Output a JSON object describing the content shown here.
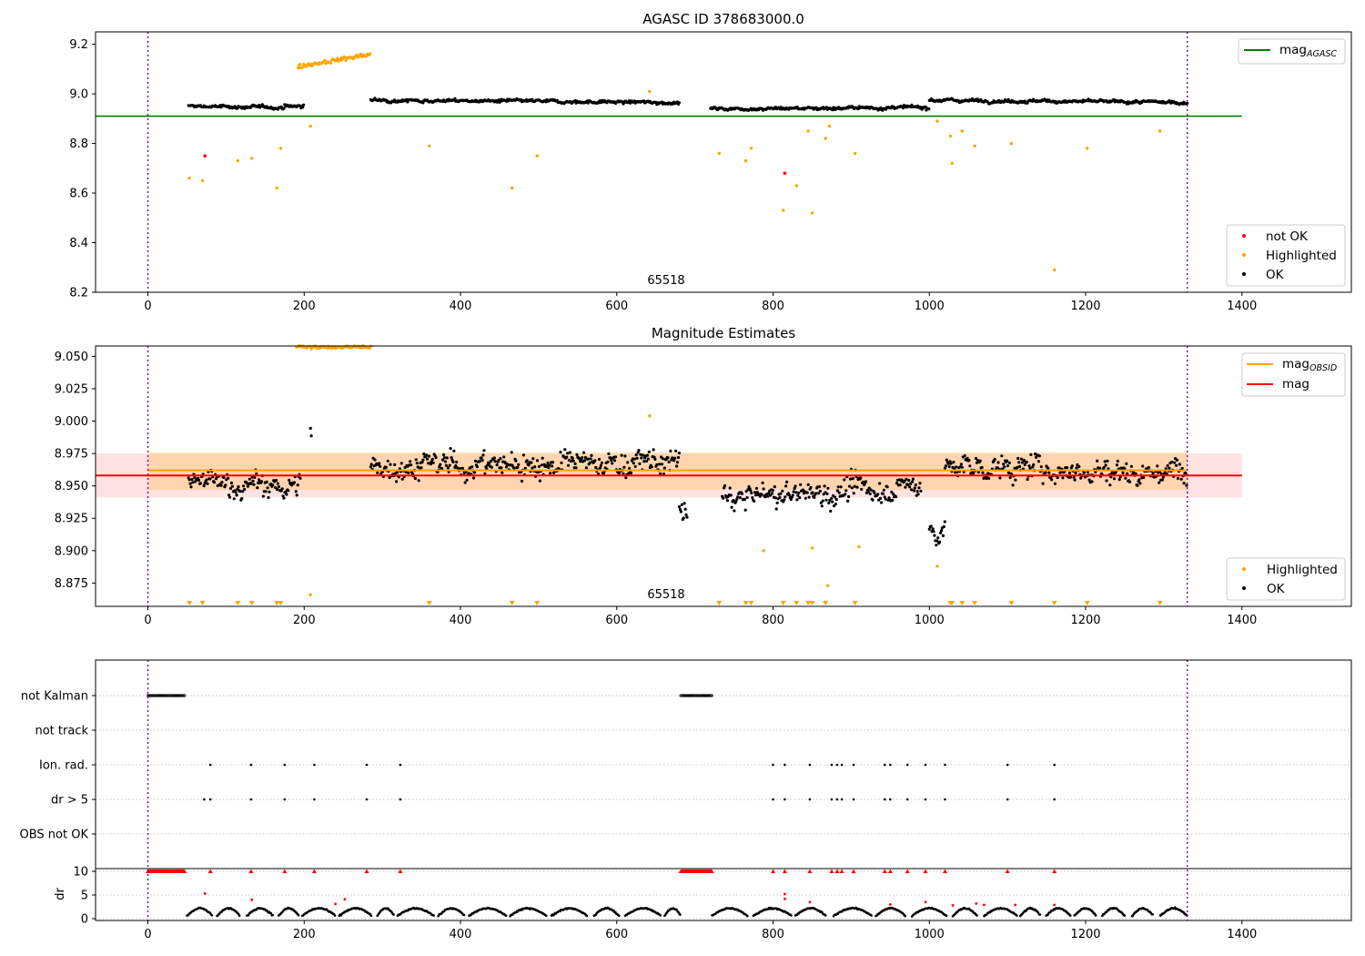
{
  "chart_data": [
    {
      "type": "scatter",
      "title": "AGASC ID 378683000.0",
      "annotation": "65518",
      "xlim": [
        -67,
        1540
      ],
      "ylim": [
        8.2,
        9.25
      ],
      "x_ticks": [
        0,
        200,
        400,
        600,
        800,
        1000,
        1200,
        1400
      ],
      "y_ticks": [
        "8.2",
        "8.4",
        "8.6",
        "8.8",
        "9.0",
        "9.2"
      ],
      "vlines_x": [
        0,
        1330
      ],
      "hline": {
        "name": "mag",
        "name_sub": "AGASC",
        "y": 8.91,
        "x_range": [
          -67,
          1400
        ],
        "color": "#008000"
      },
      "legend_lines": [
        {
          "name": "mag",
          "sub": "AGASC",
          "color": "#008000"
        }
      ],
      "legend_points": [
        {
          "name": "not OK",
          "color": "#ff0000"
        },
        {
          "name": "Highlighted",
          "color": "#ffa500"
        },
        {
          "name": "OK",
          "color": "#000000"
        }
      ],
      "ok_segments": [
        {
          "x": [
            52,
            175
          ],
          "y": [
            8.95,
            8.945
          ]
        },
        {
          "x": [
            175,
            200
          ],
          "y": [
            8.95,
            8.95
          ]
        },
        {
          "x": [
            285,
            680
          ],
          "y": [
            8.975,
            8.965
          ]
        },
        {
          "x": [
            720,
            1000
          ],
          "y": [
            8.94,
            8.945
          ]
        },
        {
          "x": [
            1000,
            1330
          ],
          "y": [
            8.975,
            8.965
          ]
        }
      ],
      "highlighted_cluster": {
        "x": [
          192,
          285
        ],
        "y": [
          9.11,
          9.16
        ]
      },
      "highlighted_points": [
        [
          53,
          8.66
        ],
        [
          70,
          8.65
        ],
        [
          115,
          8.73
        ],
        [
          133,
          8.74
        ],
        [
          165,
          8.62
        ],
        [
          170,
          8.78
        ],
        [
          208,
          8.87
        ],
        [
          360,
          8.79
        ],
        [
          466,
          8.62
        ],
        [
          498,
          8.75
        ],
        [
          642,
          9.01
        ],
        [
          731,
          8.76
        ],
        [
          765,
          8.73
        ],
        [
          772,
          8.78
        ],
        [
          813,
          8.53
        ],
        [
          830,
          8.63
        ],
        [
          845,
          8.85
        ],
        [
          850,
          8.52
        ],
        [
          867,
          8.82
        ],
        [
          872,
          8.87
        ],
        [
          905,
          8.76
        ],
        [
          1010,
          8.89
        ],
        [
          1027,
          8.83
        ],
        [
          1029,
          8.72
        ],
        [
          1042,
          8.85
        ],
        [
          1058,
          8.79
        ],
        [
          1105,
          8.8
        ],
        [
          1160,
          8.29
        ],
        [
          1202,
          8.78
        ],
        [
          1295,
          8.85
        ]
      ],
      "not_ok_points": [
        [
          73,
          8.75
        ],
        [
          815,
          8.68
        ]
      ]
    },
    {
      "type": "scatter",
      "title": "Magnitude Estimates",
      "annotation": "65518",
      "xlim": [
        -67,
        1540
      ],
      "ylim": [
        8.857,
        9.058
      ],
      "x_ticks": [
        0,
        200,
        400,
        600,
        800,
        1000,
        1200,
        1400
      ],
      "y_ticks": [
        "8.875",
        "8.900",
        "8.925",
        "8.950",
        "8.975",
        "9.000",
        "9.025",
        "9.050"
      ],
      "vlines_x": [
        0,
        1330
      ],
      "mag_obsid": {
        "name": "mag",
        "sub": "OBSID",
        "y": 8.962,
        "band": [
          8.947,
          8.976
        ],
        "x_range": [
          0,
          1330
        ],
        "color": "#ffa500"
      },
      "mag": {
        "name": "mag",
        "y": 8.958,
        "band": [
          8.941,
          8.975
        ],
        "x_range": [
          -67,
          1400
        ],
        "color": "#ff0000"
      },
      "legend_lines": [
        {
          "name": "mag",
          "sub": "OBSID",
          "color": "#ffa500"
        },
        {
          "name": "mag",
          "sub": "",
          "color": "#ff0000"
        }
      ],
      "legend_points": [
        {
          "name": "Highlighted",
          "color": "#ffa500"
        },
        {
          "name": "OK",
          "color": "#000000"
        }
      ],
      "ok_segments": [
        {
          "x": [
            52,
            195
          ],
          "y": [
            8.953,
            8.948
          ]
        },
        {
          "x": [
            208,
            210
          ],
          "y": [
            8.993,
            8.993
          ]
        },
        {
          "x": [
            285,
            680
          ],
          "y": [
            8.965,
            8.968
          ]
        },
        {
          "x": [
            680,
            690
          ],
          "y": [
            8.93,
            8.93
          ]
        },
        {
          "x": [
            735,
            990
          ],
          "y": [
            8.94,
            8.95
          ]
        },
        {
          "x": [
            1000,
            1020
          ],
          "y": [
            8.915,
            8.915
          ]
        },
        {
          "x": [
            1020,
            1330
          ],
          "y": [
            8.965,
            8.96
          ]
        }
      ],
      "top_cluster": {
        "x": [
          190,
          287
        ],
        "y": 9.057
      },
      "highlighted_points": [
        [
          208,
          8.866
        ],
        [
          642,
          9.004
        ],
        [
          788,
          8.9
        ],
        [
          850,
          8.902
        ],
        [
          870,
          8.873
        ],
        [
          910,
          8.903
        ],
        [
          1010,
          8.888
        ]
      ],
      "clipped_below_x": [
        53,
        70,
        115,
        133,
        165,
        170,
        360,
        466,
        498,
        731,
        765,
        772,
        813,
        830,
        845,
        850,
        867,
        905,
        1027,
        1029,
        1042,
        1058,
        1105,
        1160,
        1202,
        1295
      ]
    },
    {
      "type": "scatter",
      "title": "",
      "xlim": [
        -67,
        1540
      ],
      "x_ticks": [
        0,
        200,
        400,
        600,
        800,
        1000,
        1200,
        1400
      ],
      "vlines_x": [
        0,
        1330
      ],
      "flag_rows": [
        "not Kalman",
        "not track",
        "Ion. rad.",
        "dr > 5",
        "OBS not OK"
      ],
      "flags": {
        "not Kalman": [
          [
            0,
            48
          ],
          [
            682,
            722
          ]
        ],
        "not track": [],
        "Ion. rad.": [
          80,
          132,
          175,
          213,
          280,
          323,
          800,
          815,
          847,
          875,
          882,
          888,
          903,
          943,
          950,
          972,
          995,
          1020,
          1100,
          1160
        ],
        "dr > 5": [
          72,
          80,
          132,
          175,
          213,
          280,
          323,
          800,
          815,
          847,
          875,
          882,
          888,
          903,
          943,
          950,
          972,
          995,
          1020,
          1100,
          1160
        ],
        "OBS not OK": []
      },
      "dr_axis": {
        "ylabel": "dr",
        "y_ticks": [
          "0",
          "5",
          "10"
        ],
        "ylim": [
          -1,
          11
        ]
      },
      "dr_clipped_x": [
        [
          0,
          48
        ],
        [
          682,
          722
        ],
        80,
        132,
        175,
        213,
        280,
        323,
        800,
        815,
        847,
        875,
        882,
        888,
        903,
        943,
        950,
        972,
        995,
        1020,
        1100,
        1160
      ],
      "dr_red_points": [
        [
          73,
          5.3
        ],
        [
          133,
          4
        ],
        [
          240,
          3.1
        ],
        [
          252,
          4.1
        ],
        [
          815,
          5.2
        ],
        [
          815,
          4.2
        ],
        [
          847,
          3.5
        ],
        [
          950,
          3
        ],
        [
          995,
          3.5
        ],
        [
          1030,
          2.8
        ],
        [
          1060,
          3.2
        ],
        [
          1070,
          2.9
        ],
        [
          1110,
          2.9
        ],
        [
          1160,
          2.9
        ]
      ]
    }
  ]
}
